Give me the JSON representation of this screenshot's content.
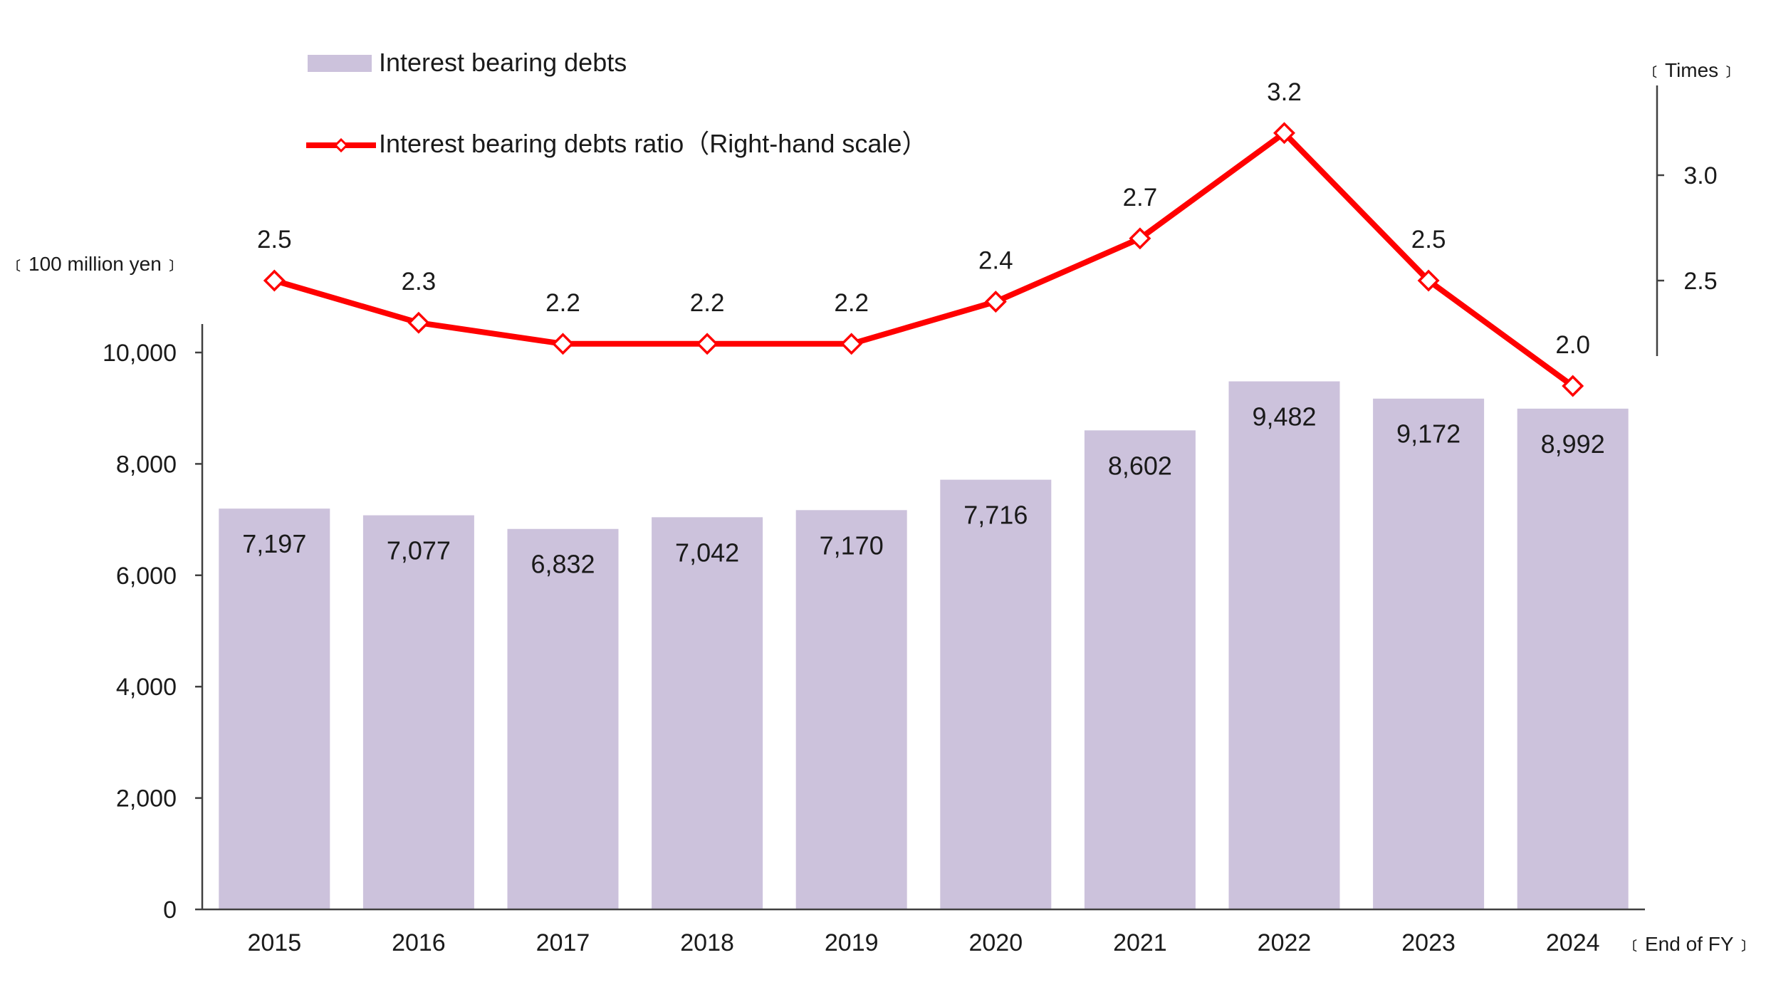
{
  "chart_data": {
    "type": "bar",
    "categories": [
      "2015",
      "2016",
      "2017",
      "2018",
      "2019",
      "2020",
      "2021",
      "2022",
      "2023",
      "2024"
    ],
    "series": [
      {
        "name": "Interest bearing debts",
        "type": "bar",
        "axis": "left",
        "color": "#ccc2dc",
        "values": [
          7197,
          7077,
          6832,
          7042,
          7170,
          7716,
          8602,
          9482,
          9172,
          8992
        ],
        "labels": [
          "7,197",
          "7,077",
          "6,832",
          "7,042",
          "7,170",
          "7,716",
          "8,602",
          "9,482",
          "9,172",
          "8,992"
        ]
      },
      {
        "name": "Interest bearing debts ratio（Right-hand scale）",
        "type": "line",
        "axis": "right",
        "color": "#ff0000",
        "values": [
          2.5,
          2.3,
          2.2,
          2.2,
          2.2,
          2.4,
          2.7,
          3.2,
          2.5,
          2.0
        ],
        "labels": [
          "2.5",
          "2.3",
          "2.2",
          "2.2",
          "2.2",
          "2.4",
          "2.7",
          "3.2",
          "2.5",
          "2.0"
        ]
      }
    ],
    "y_left": {
      "unit": "﹝100 million yen﹞",
      "ylim": [
        0,
        10000
      ],
      "ticks": [
        0,
        2000,
        4000,
        6000,
        8000,
        10000
      ],
      "tick_labels": [
        "0",
        "2,000",
        "4,000",
        "6,000",
        "8,000",
        "10,000"
      ]
    },
    "y_right": {
      "unit": "﹝Times﹞",
      "ticks": [
        2.5,
        3.0
      ],
      "tick_labels": [
        "2.5",
        "3.0"
      ]
    },
    "x_unit": "﹝End of FY﹞",
    "grid": false,
    "legend_position": "top"
  }
}
